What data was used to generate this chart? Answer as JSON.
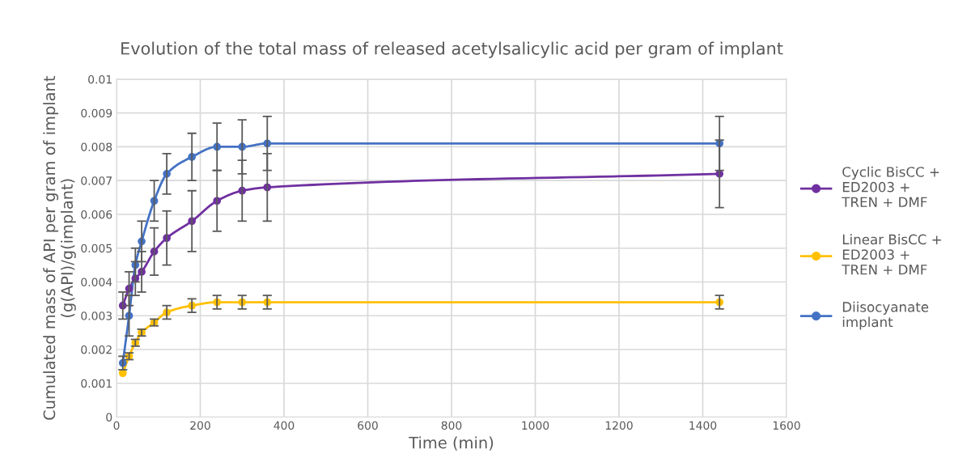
{
  "chart_data": {
    "type": "line",
    "title": "Evolution of the total mass of released acetylsalicylic acid per gram of implant",
    "xlabel": "Time (min)",
    "ylabel": "Cumulated mass of API per gram of implant\n(g(API)/g(implant)",
    "x": [
      15,
      30,
      45,
      60,
      90,
      120,
      180,
      240,
      300,
      360,
      1440
    ],
    "series": [
      {
        "name": "Cyclic BisCC +\nED2003 +\nTREN + DMF",
        "color": "#7030a0",
        "values": [
          0.0033,
          0.0038,
          0.0041,
          0.0043,
          0.0049,
          0.0053,
          0.0058,
          0.0064,
          0.0067,
          0.0068,
          0.0072
        ],
        "errors": [
          0.0004,
          0.0005,
          0.0005,
          0.0006,
          0.0007,
          0.0008,
          0.0009,
          0.0009,
          0.0009,
          0.001,
          0.001
        ]
      },
      {
        "name": "Linear BisCC +\nED2003 +\nTREN + DMF",
        "color": "#ffc000",
        "values": [
          0.0013,
          0.0018,
          0.0022,
          0.0025,
          0.0028,
          0.0031,
          0.0033,
          0.0034,
          0.0034,
          0.0034,
          0.0034
        ],
        "errors": [
          null,
          0.0001,
          0.0001,
          0.0001,
          0.0001,
          0.0002,
          0.0002,
          0.0002,
          0.0002,
          0.0002,
          0.0002
        ]
      },
      {
        "name": "Diisocyanate\nimplant",
        "color": "#4472c4",
        "values": [
          0.0016,
          0.003,
          0.0045,
          0.0052,
          0.0064,
          0.0072,
          0.0077,
          0.008,
          0.008,
          0.0081,
          0.0081
        ],
        "errors": [
          0.0002,
          0.0006,
          0.0005,
          0.0006,
          0.0006,
          0.0006,
          0.0007,
          0.0007,
          0.0008,
          0.0008,
          0.0008
        ]
      }
    ],
    "xlim": [
      0,
      1600
    ],
    "xticks": [
      0,
      200,
      400,
      600,
      800,
      1000,
      1200,
      1400,
      1600
    ],
    "ylim": [
      0,
      0.01
    ],
    "yticks": [
      0,
      0.001,
      0.002,
      0.003,
      0.004,
      0.005,
      0.006,
      0.007,
      0.008,
      0.009,
      0.01
    ],
    "grid": true,
    "legend": "right",
    "marker": "circle",
    "line_style": "solid"
  }
}
